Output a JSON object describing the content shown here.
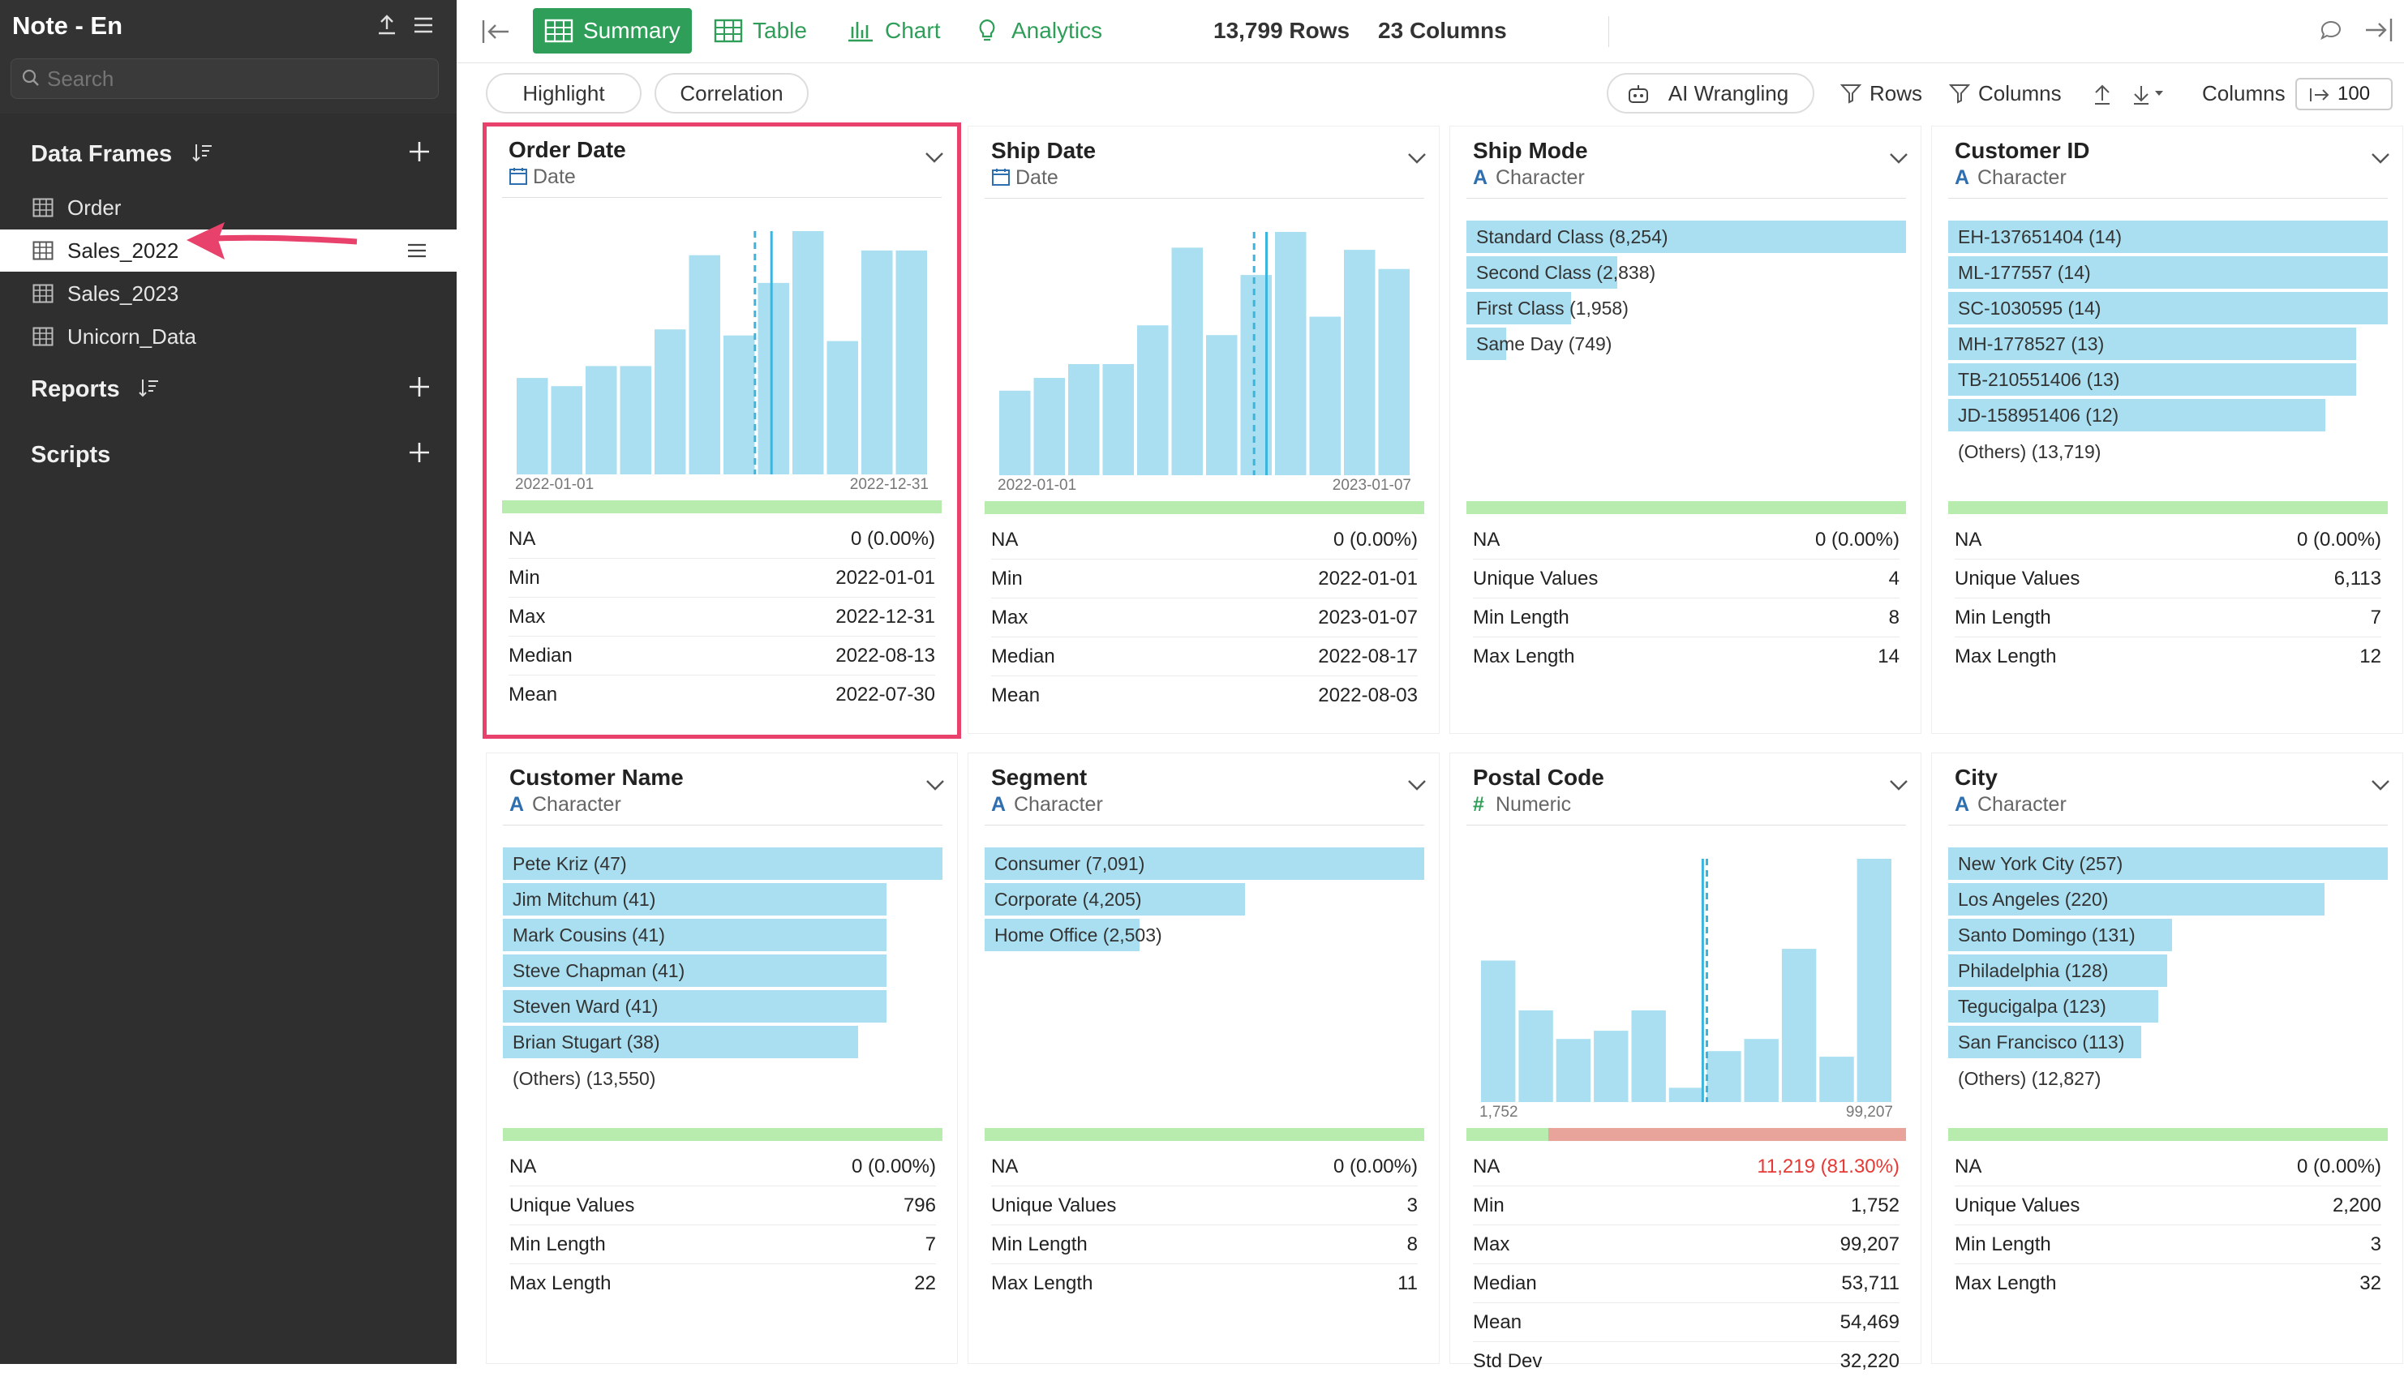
{
  "sidebar": {
    "title": "Note - En",
    "search_placeholder": "Search",
    "data_frames_header": "Data Frames",
    "data_frames": [
      {
        "label": "Order",
        "selected": false
      },
      {
        "label": "Sales_2022",
        "selected": true
      },
      {
        "label": "Sales_2023",
        "selected": false
      },
      {
        "label": "Unicorn_Data",
        "selected": false
      }
    ],
    "reports_header": "Reports",
    "scripts_header": "Scripts"
  },
  "toolbar": {
    "tabs": [
      {
        "label": "Summary",
        "active": true
      },
      {
        "label": "Table",
        "active": false
      },
      {
        "label": "Chart",
        "active": false
      },
      {
        "label": "Analytics",
        "active": false
      }
    ],
    "rows_count": "13,799",
    "rows_label": "Rows",
    "cols_count": "23",
    "cols_label": "Columns"
  },
  "subbar": {
    "highlight": "Highlight",
    "correlation": "Correlation",
    "ai_wrangling": "AI Wrangling",
    "rows_filter": "Rows",
    "columns_filter": "Columns",
    "columns_label": "Columns",
    "columns_value": "100"
  },
  "colors": {
    "accent": "#2e9e58",
    "bar": "#a9dff0",
    "highlight": "#e8416b",
    "quality": "#b8ecae",
    "missing": "#e8a39a"
  },
  "cards": [
    {
      "title": "Order Date",
      "type": "Date",
      "type_icon": "calendar-icon",
      "kind": "hist",
      "highlight": true,
      "hist": [
        {
          "x": "2022-01",
          "count": 413
        },
        {
          "x": "2022-02",
          "count": 378
        },
        {
          "x": "2022-03",
          "count": 464
        },
        {
          "x": "2022-04",
          "count": 464
        },
        {
          "x": "2022-05",
          "count": 621
        },
        {
          "x": "2022-06",
          "count": 939
        },
        {
          "x": "2022-07",
          "count": 595
        },
        {
          "x": "2022-08",
          "count": 820
        },
        {
          "x": "2022-09",
          "count": 1042
        },
        {
          "x": "2022-10",
          "count": 571
        },
        {
          "x": "2022-11",
          "count": 959
        },
        {
          "x": "2022-12",
          "count": 959
        }
      ],
      "hist_ymax": 1042,
      "median_at": 0.62,
      "mean_at": 0.58,
      "axis_min": "2022-01-01",
      "axis_max": "2022-12-31",
      "missing_pct": 0,
      "stats": [
        {
          "k": "NA",
          "v": "0 (0.00%)"
        },
        {
          "k": "Min",
          "v": "2022-01-01"
        },
        {
          "k": "Max",
          "v": "2022-12-31"
        },
        {
          "k": "Median",
          "v": "2022-08-13"
        },
        {
          "k": "Mean",
          "v": "2022-07-30"
        }
      ]
    },
    {
      "title": "Ship Date",
      "type": "Date",
      "type_icon": "calendar-icon",
      "kind": "hist",
      "highlight": false,
      "hist": [
        {
          "x": "2022-01",
          "count": 349
        },
        {
          "x": "2022-02",
          "count": 402
        },
        {
          "x": "2022-03",
          "count": 459
        },
        {
          "x": "2022-04",
          "count": 459
        },
        {
          "x": "2022-05",
          "count": 619
        },
        {
          "x": "2022-06",
          "count": 940
        },
        {
          "x": "2022-07",
          "count": 579
        },
        {
          "x": "2022-08",
          "count": 827
        },
        {
          "x": "2022-09",
          "count": 1005
        },
        {
          "x": "2022-10",
          "count": 655
        },
        {
          "x": "2022-11",
          "count": 931
        },
        {
          "x": "2022-12",
          "count": 852
        }
      ],
      "hist_ymax": 1005,
      "median_at": 0.65,
      "mean_at": 0.62,
      "axis_min": "2022-01-01",
      "axis_max": "2023-01-07",
      "missing_pct": 0,
      "stats": [
        {
          "k": "NA",
          "v": "0 (0.00%)"
        },
        {
          "k": "Min",
          "v": "2022-01-01"
        },
        {
          "k": "Max",
          "v": "2023-01-07"
        },
        {
          "k": "Median",
          "v": "2022-08-17"
        },
        {
          "k": "Mean",
          "v": "2022-08-03"
        }
      ]
    },
    {
      "title": "Ship Mode",
      "type": "Character",
      "type_icon": "character-icon",
      "kind": "bars",
      "highlight": false,
      "bars": [
        {
          "label": "Standard Class (8,254)",
          "value": 8254
        },
        {
          "label": "Second Class (2,838)",
          "value": 2838
        },
        {
          "label": "First Class (1,958)",
          "value": 1958
        },
        {
          "label": "Same Day (749)",
          "value": 749
        }
      ],
      "others": "",
      "missing_pct": 0,
      "stats": [
        {
          "k": "NA",
          "v": "0 (0.00%)"
        },
        {
          "k": "Unique Values",
          "v": "4"
        },
        {
          "k": "Min Length",
          "v": "8"
        },
        {
          "k": "Max Length",
          "v": "14"
        }
      ]
    },
    {
      "title": "Customer ID",
      "type": "Character",
      "type_icon": "character-icon",
      "kind": "bars",
      "highlight": false,
      "bars": [
        {
          "label": "EH-137651404 (14)",
          "value": 14
        },
        {
          "label": "ML-177557 (14)",
          "value": 14
        },
        {
          "label": "SC-1030595 (14)",
          "value": 14
        },
        {
          "label": "MH-1778527 (13)",
          "value": 13
        },
        {
          "label": "TB-210551406 (13)",
          "value": 13
        },
        {
          "label": "JD-158951406 (12)",
          "value": 12
        }
      ],
      "others": "(Others) (13,719)",
      "missing_pct": 0,
      "stats": [
        {
          "k": "NA",
          "v": "0 (0.00%)"
        },
        {
          "k": "Unique Values",
          "v": "6,113"
        },
        {
          "k": "Min Length",
          "v": "7"
        },
        {
          "k": "Max Length",
          "v": "12"
        }
      ]
    },
    {
      "title": "Customer Name",
      "type": "Character",
      "type_icon": "character-icon",
      "kind": "bars",
      "highlight": false,
      "bars": [
        {
          "label": "Pete Kriz (47)",
          "value": 47
        },
        {
          "label": "Jim Mitchum (41)",
          "value": 41
        },
        {
          "label": "Mark Cousins (41)",
          "value": 41
        },
        {
          "label": "Steve Chapman (41)",
          "value": 41
        },
        {
          "label": "Steven Ward (41)",
          "value": 41
        },
        {
          "label": "Brian Stugart (38)",
          "value": 38
        }
      ],
      "others": "(Others) (13,550)",
      "missing_pct": 0,
      "stats": [
        {
          "k": "NA",
          "v": "0 (0.00%)"
        },
        {
          "k": "Unique Values",
          "v": "796"
        },
        {
          "k": "Min Length",
          "v": "7"
        },
        {
          "k": "Max Length",
          "v": "22"
        }
      ]
    },
    {
      "title": "Segment",
      "type": "Character",
      "type_icon": "character-icon",
      "kind": "bars",
      "highlight": false,
      "bars": [
        {
          "label": "Consumer (7,091)",
          "value": 7091
        },
        {
          "label": "Corporate (4,205)",
          "value": 4205
        },
        {
          "label": "Home Office (2,503)",
          "value": 2503
        }
      ],
      "others": "",
      "missing_pct": 0,
      "stats": [
        {
          "k": "NA",
          "v": "0 (0.00%)"
        },
        {
          "k": "Unique Values",
          "v": "3"
        },
        {
          "k": "Min Length",
          "v": "8"
        },
        {
          "k": "Max Length",
          "v": "11"
        }
      ]
    },
    {
      "title": "Postal Code",
      "type": "Numeric",
      "type_icon": "numeric-icon",
      "kind": "hist",
      "highlight": false,
      "hist": [
        {
          "x": 1,
          "count": 278
        },
        {
          "x": 2,
          "count": 180
        },
        {
          "x": 3,
          "count": 124
        },
        {
          "x": 4,
          "count": 140
        },
        {
          "x": 5,
          "count": 180
        },
        {
          "x": 6,
          "count": 28
        },
        {
          "x": 7,
          "count": 100
        },
        {
          "x": 8,
          "count": 124
        },
        {
          "x": 9,
          "count": 301
        },
        {
          "x": 10,
          "count": 89
        },
        {
          "x": 11,
          "count": 478
        }
      ],
      "hist_ymax": 478,
      "median_at": 0.54,
      "mean_at": 0.55,
      "axis_min": "1,752",
      "axis_max": "99,207",
      "missing_pct": 0.813,
      "stats": [
        {
          "k": "NA",
          "v": "11,219 (81.30%)",
          "red": true
        },
        {
          "k": "Min",
          "v": "1,752"
        },
        {
          "k": "Max",
          "v": "99,207"
        },
        {
          "k": "Median",
          "v": "53,711"
        },
        {
          "k": "Mean",
          "v": "54,469"
        },
        {
          "k": "Std Dev",
          "v": "32,220"
        }
      ]
    },
    {
      "title": "City",
      "type": "Character",
      "type_icon": "character-icon",
      "kind": "bars",
      "highlight": false,
      "bars": [
        {
          "label": "New York City (257)",
          "value": 257
        },
        {
          "label": "Los Angeles (220)",
          "value": 220
        },
        {
          "label": "Santo Domingo (131)",
          "value": 131
        },
        {
          "label": "Philadelphia (128)",
          "value": 128
        },
        {
          "label": "Tegucigalpa (123)",
          "value": 123
        },
        {
          "label": "San Francisco (113)",
          "value": 113
        }
      ],
      "others": "(Others) (12,827)",
      "missing_pct": 0,
      "stats": [
        {
          "k": "NA",
          "v": "0 (0.00%)"
        },
        {
          "k": "Unique Values",
          "v": "2,200"
        },
        {
          "k": "Min Length",
          "v": "3"
        },
        {
          "k": "Max Length",
          "v": "32"
        }
      ]
    }
  ]
}
